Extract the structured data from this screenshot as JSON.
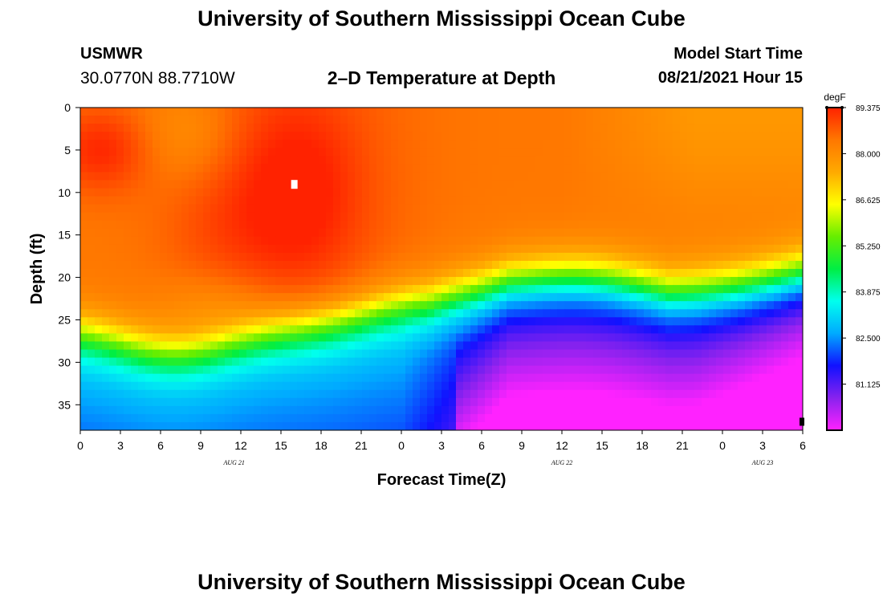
{
  "page": {
    "title_top": "University of Southern Mississippi Ocean Cube",
    "title_bottom": "University of Southern Mississippi Ocean Cube",
    "station": "USMWR",
    "coords": "30.0770N  88.7710W",
    "plot_title": "2–D Temperature at Depth",
    "model_label": "Model Start Time",
    "model_time": "08/21/2021 Hour 15"
  },
  "chart_data": {
    "type": "heatmap",
    "title": "2–D Temperature at Depth",
    "xlabel": "Forecast Time(Z)",
    "ylabel": "Depth (ft)",
    "x_hours": [
      0,
      54
    ],
    "y_depth_ft": [
      0,
      38
    ],
    "x_tick_labels": [
      "0",
      "3",
      "6",
      "9",
      "12",
      "15",
      "18",
      "21",
      "0",
      "3",
      "6",
      "9",
      "12",
      "15",
      "18",
      "21",
      "0",
      "3",
      "6"
    ],
    "x_date_labels": [
      {
        "label": "AUG 21",
        "hour": 11.5
      },
      {
        "label": "AUG 22",
        "hour": 36
      },
      {
        "label": "AUG 23",
        "hour": 51
      }
    ],
    "y_ticks": [
      0,
      5,
      10,
      15,
      20,
      25,
      30,
      35
    ],
    "colorbar": {
      "units": "degF",
      "min": 79.75,
      "max": 89.375,
      "tick_values": [
        89.375,
        88.0,
        86.625,
        85.25,
        83.875,
        82.5,
        81.125
      ],
      "tick_labels": [
        "89.375",
        "88.000",
        "86.625",
        "85.250",
        "83.875",
        "82.500",
        "81.125"
      ],
      "colors": [
        "#ff22ff",
        "#8822ee",
        "#1111ff",
        "#00aaff",
        "#00ffee",
        "#00ee44",
        "#66ee00",
        "#ffff00",
        "#ffaa00",
        "#ff7700",
        "#ff2200"
      ]
    },
    "markers": [
      {
        "type": "white-square",
        "hour": 16,
        "depth_ft": 9
      },
      {
        "type": "black-square",
        "hour": 54,
        "depth_ft": 37
      }
    ],
    "field_summary": "Warm 88-89F from surface to ~25 ft, sharp thermocline ~25-30 ft, cold 80-82F near bottom after Aug 22 06Z"
  }
}
